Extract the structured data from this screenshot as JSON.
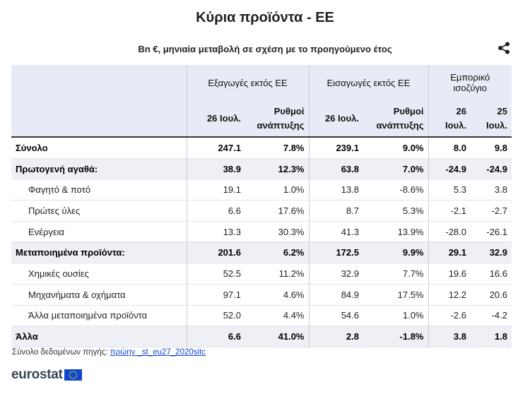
{
  "title": "Κύρια προϊόντα - ΕΕ",
  "subtitle": "Bn €, μηνιαία μεταβολή σε σχέση με το προηγούμενο έτος",
  "share_icon": "share-icon",
  "table": {
    "group_headers": [
      "Εξαγωγές εκτός ΕΕ",
      "Εισαγωγές εκτός ΕΕ",
      "Εμπορικό ισοζύγιο"
    ],
    "col_headers": [
      "26 Ιουλ.",
      "Ρυθμοί ανάπτυξης",
      "26 Ιουλ.",
      "Ρυθμοί ανάπτυξης",
      "26 Ιουλ.",
      "25 Ιουλ."
    ],
    "rows": [
      {
        "label": "Σύνολο",
        "values": [
          "247.1",
          "7.8%",
          "239.1",
          "9.0%",
          "8.0",
          "9.8"
        ],
        "style": "plain-bold"
      },
      {
        "label": "Πρωτογενή αγαθά:",
        "values": [
          "38.9",
          "12.3%",
          "63.8",
          "7.0%",
          "-24.9",
          "-24.9"
        ],
        "style": "bold"
      },
      {
        "label": "Φαγητό & ποτό",
        "values": [
          "19.1",
          "1.0%",
          "13.8",
          "-8.6%",
          "5.3",
          "3.8"
        ],
        "style": "sub"
      },
      {
        "label": "Πρώτες ύλες",
        "values": [
          "6.6",
          "17.6%",
          "8.7",
          "5.3%",
          "-2.1",
          "-2.7"
        ],
        "style": "sub"
      },
      {
        "label": "Ενέργεια",
        "values": [
          "13.3",
          "30.3%",
          "41.3",
          "13.9%",
          "-28.0",
          "-26.1"
        ],
        "style": "sub"
      },
      {
        "label": "Μεταποιημένα προϊόντα:",
        "values": [
          "201.6",
          "6.2%",
          "172.5",
          "9.9%",
          "29.1",
          "32.9"
        ],
        "style": "bold"
      },
      {
        "label": "Χημικές ουσίες",
        "values": [
          "52.5",
          "11.2%",
          "32.9",
          "7.7%",
          "19.6",
          "16.6"
        ],
        "style": "sub"
      },
      {
        "label": "Μηχανήματα & οχήματα",
        "values": [
          "97.1",
          "4.6%",
          "84.9",
          "17.5%",
          "12.2",
          "20.6"
        ],
        "style": "sub"
      },
      {
        "label": "Άλλα μεταποιημένα προϊόντα",
        "values": [
          "52.0",
          "4.4%",
          "54.6",
          "1.0%",
          "-2.6",
          "-4.2"
        ],
        "style": "sub"
      },
      {
        "label": "Άλλα",
        "values": [
          "6.6",
          "41.0%",
          "2.8",
          "-1.8%",
          "3.8",
          "1.8"
        ],
        "style": "bold"
      }
    ]
  },
  "source": {
    "label": "Σύνολο δεδομένων πηγής:",
    "link_text": "πρώην _st_eu27_2020sitc"
  },
  "logo": {
    "text": "eurostat",
    "flag_color": "#0e47cb",
    "star_color": "#ffd617"
  }
}
